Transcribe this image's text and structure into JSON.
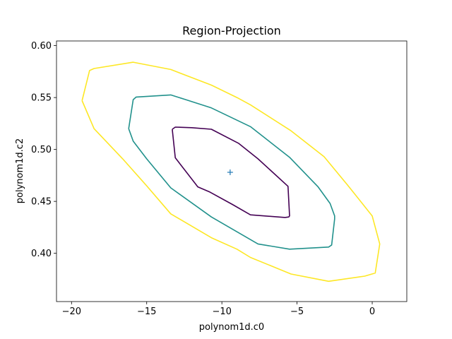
{
  "chart_data": {
    "type": "line",
    "title": "Region-Projection",
    "xlabel": "polynom1d.c0",
    "ylabel": "polynom1d.c2",
    "xlim": [
      -21.0,
      2.3
    ],
    "ylim": [
      0.3535,
      0.6045
    ],
    "xticks": [
      -20,
      -15,
      -10,
      -5,
      0
    ],
    "xtick_labels": [
      "−20",
      "−15",
      "−10",
      "−5",
      "0"
    ],
    "yticks": [
      0.4,
      0.45,
      0.5,
      0.55,
      0.6
    ],
    "ytick_labels": [
      "0.40",
      "0.45",
      "0.50",
      "0.55",
      "0.60"
    ],
    "grid": false,
    "legend": "none",
    "center_marker": {
      "x": -9.45,
      "y": 0.478,
      "symbol": "+",
      "color": "#1f77b4"
    },
    "series": [
      {
        "color": "#440154",
        "closed": true,
        "x": [
          -13.3,
          -13.1,
          -12.0,
          -10.7,
          -8.9,
          -7.6,
          -5.6,
          -5.5,
          -5.55,
          -5.8,
          -8.1,
          -9.3,
          -10.8,
          -11.6,
          -13.1
        ],
        "y": [
          0.5195,
          0.5215,
          0.521,
          0.5195,
          0.506,
          0.491,
          0.4645,
          0.436,
          0.435,
          0.4345,
          0.437,
          0.447,
          0.459,
          0.464,
          0.492
        ]
      },
      {
        "color": "#21918c",
        "closed": true,
        "x": [
          -16.2,
          -15.9,
          -15.7,
          -13.4,
          -12.4,
          -10.7,
          -8.1,
          -5.5,
          -3.6,
          -2.8,
          -2.5,
          -2.5,
          -2.7,
          -2.9,
          -5.5,
          -7.6,
          -10.7,
          -13.4,
          -15.0,
          -15.9
        ],
        "y": [
          0.52,
          0.548,
          0.5505,
          0.5525,
          0.548,
          0.54,
          0.522,
          0.4925,
          0.464,
          0.448,
          0.436,
          0.433,
          0.408,
          0.406,
          0.404,
          0.409,
          0.435,
          0.463,
          0.491,
          0.508
        ]
      },
      {
        "color": "#fde725",
        "closed": true,
        "x": [
          -19.3,
          -18.8,
          -18.5,
          -15.9,
          -13.4,
          -10.7,
          -9.0,
          -8.1,
          -5.4,
          -3.2,
          -1.6,
          0.0,
          0.5,
          0.2,
          -0.5,
          -2.9,
          -5.4,
          -8.1,
          -9.0,
          -10.7,
          -13.4,
          -15.0,
          -16.6,
          -18.5
        ],
        "y": [
          0.547,
          0.576,
          0.578,
          0.584,
          0.577,
          0.562,
          0.55,
          0.543,
          0.518,
          0.493,
          0.465,
          0.436,
          0.409,
          0.381,
          0.378,
          0.373,
          0.38,
          0.396,
          0.404,
          0.415,
          0.438,
          0.465,
          0.491,
          0.52
        ]
      }
    ]
  }
}
